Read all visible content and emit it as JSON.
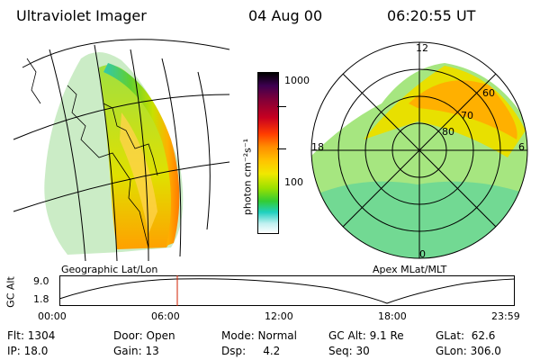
{
  "header": {
    "instrument": "Ultraviolet Imager",
    "date": "04 Aug 00",
    "time": "06:20:55 UT"
  },
  "left_panel": {
    "caption": "Geographic Lat/Lon"
  },
  "right_panel": {
    "caption": "Apex MLat/MLT",
    "mlt_labels": {
      "top": "12",
      "left": "18",
      "right": "6",
      "bottom": "0"
    },
    "lat_labels": [
      "60",
      "70",
      "80"
    ]
  },
  "colorbar": {
    "unit_label": "photon cm⁻²s⁻¹",
    "ticks": [
      "1000",
      "100"
    ],
    "colors": [
      "#000000",
      "#3d0050",
      "#8a0035",
      "#c80020",
      "#ff3c00",
      "#ff8c00",
      "#ffc400",
      "#f0e800",
      "#9ae000",
      "#33cc33",
      "#20d0c0",
      "#c0f0f0",
      "#ffffff"
    ]
  },
  "altitude_plot": {
    "axis_label": "GC Alt",
    "y_ticks": [
      "9.0",
      "1.8"
    ],
    "x_ticks": [
      "00:00",
      "06:00",
      "12:00",
      "18:00",
      "23:59"
    ]
  },
  "status": {
    "flt": "Flt: 1304",
    "ip": "IP: 18.0",
    "door": "Door: Open",
    "gain": "Gain: 13",
    "mode": "Mode: Normal",
    "dsp": "Dsp:     4.2",
    "gcalt": "GC Alt: 9.1 Re",
    "seq": "Seq: 30",
    "glat": "GLat:  62.6",
    "glon": "GLon: 306.0"
  }
}
